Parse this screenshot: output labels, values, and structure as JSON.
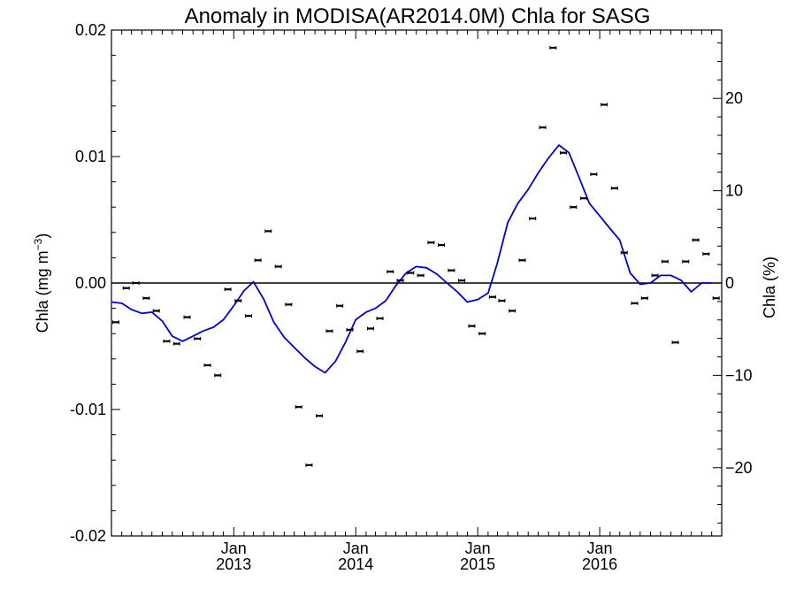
{
  "chart_data": {
    "type": "scatter",
    "title": "Anomaly in MODISA(AR2014.0M) Chla for SASG",
    "ylabel_left": {
      "base": "Chla (mg m",
      "sup": "−3",
      "close": ")"
    },
    "ylabel_right": "Chla (%)",
    "ylim_left": [
      -0.02,
      0.02
    ],
    "ylim_right": [
      -27.4,
      27.4
    ],
    "xlim": [
      "2012-01-01",
      "2016-12-31"
    ],
    "left_ticks": [
      {
        "value": 0.02,
        "label": "0.02"
      },
      {
        "value": 0.01,
        "label": "0.01"
      },
      {
        "value": 0.0,
        "label": "0.00"
      },
      {
        "value": -0.01,
        "label": "-0.01"
      },
      {
        "value": -0.02,
        "label": "-0.02"
      }
    ],
    "right_ticks": [
      {
        "value": 20,
        "label": "20"
      },
      {
        "value": 10,
        "label": "10"
      },
      {
        "value": 0,
        "label": "0"
      },
      {
        "value": -10,
        "label": "−10"
      },
      {
        "value": -20,
        "label": "−20"
      }
    ],
    "x_ticks": [
      {
        "date": "2013-01-01",
        "month": "Jan",
        "year": "2013"
      },
      {
        "date": "2014-01-01",
        "month": "Jan",
        "year": "2014"
      },
      {
        "date": "2015-01-01",
        "month": "Jan",
        "year": "2015"
      },
      {
        "date": "2016-01-01",
        "month": "Jan",
        "year": "2016"
      }
    ],
    "zero_line": true,
    "colors": {
      "points": "#000000",
      "line": "#0000cc",
      "zero": "#000000"
    },
    "series": [
      {
        "type": "scatter",
        "x": [
          "2012-01-01",
          "2012-02-01",
          "2012-03-01",
          "2012-04-01",
          "2012-05-01",
          "2012-06-01",
          "2012-07-01",
          "2012-08-01",
          "2012-09-01",
          "2012-10-01",
          "2012-11-01",
          "2012-12-01",
          "2013-01-01",
          "2013-02-01",
          "2013-03-01",
          "2013-04-01",
          "2013-05-01",
          "2013-06-01",
          "2013-07-01",
          "2013-08-01",
          "2013-09-01",
          "2013-10-01",
          "2013-11-01",
          "2013-12-01",
          "2014-01-01",
          "2014-02-01",
          "2014-03-01",
          "2014-04-01",
          "2014-05-01",
          "2014-06-01",
          "2014-07-01",
          "2014-08-01",
          "2014-09-01",
          "2014-10-01",
          "2014-11-01",
          "2014-12-01",
          "2015-01-01",
          "2015-02-01",
          "2015-03-01",
          "2015-04-01",
          "2015-05-01",
          "2015-06-01",
          "2015-07-01",
          "2015-08-01",
          "2015-09-01",
          "2015-10-01",
          "2015-11-01",
          "2015-12-01",
          "2016-01-01",
          "2016-02-01",
          "2016-03-01",
          "2016-04-01",
          "2016-05-01",
          "2016-06-01",
          "2016-07-01",
          "2016-08-01",
          "2016-09-01",
          "2016-10-01",
          "2016-11-01",
          "2016-12-01"
        ],
        "y": [
          -0.0031,
          -0.0004,
          0.0,
          -0.0012,
          -0.0022,
          -0.0046,
          -0.0048,
          -0.0027,
          -0.0044,
          -0.0065,
          -0.0073,
          -0.0005,
          -0.0014,
          -0.0026,
          0.0018,
          0.0041,
          0.0013,
          -0.0017,
          -0.0098,
          -0.0144,
          -0.0105,
          -0.0038,
          -0.0018,
          -0.0037,
          -0.0054,
          -0.0036,
          -0.0028,
          0.0009,
          0.0002,
          0.0008,
          0.0006,
          0.0032,
          0.003,
          0.001,
          0.0002,
          -0.0034,
          -0.004,
          -0.0011,
          -0.0014,
          -0.0022,
          0.0018,
          0.0051,
          0.0123,
          0.0186,
          0.0103,
          0.006,
          0.0067,
          0.0086,
          0.0141,
          0.0075,
          0.0024,
          -0.0016,
          -0.0012,
          0.0006,
          0.0017,
          -0.0047,
          0.0017,
          0.0034,
          0.0023,
          -0.0012
        ]
      },
      {
        "type": "line",
        "x": [
          "2012-01-01",
          "2012-02-01",
          "2012-03-01",
          "2012-04-01",
          "2012-05-01",
          "2012-06-01",
          "2012-07-01",
          "2012-08-01",
          "2012-09-01",
          "2012-10-01",
          "2012-11-01",
          "2012-12-01",
          "2013-01-01",
          "2013-02-01",
          "2013-03-01",
          "2013-04-01",
          "2013-05-01",
          "2013-06-01",
          "2013-07-01",
          "2013-08-01",
          "2013-09-01",
          "2013-10-01",
          "2013-11-01",
          "2013-12-01",
          "2014-01-01",
          "2014-02-01",
          "2014-03-01",
          "2014-04-01",
          "2014-05-01",
          "2014-06-01",
          "2014-07-01",
          "2014-08-01",
          "2014-09-01",
          "2014-10-01",
          "2014-11-01",
          "2014-12-01",
          "2015-01-01",
          "2015-02-01",
          "2015-03-01",
          "2015-04-01",
          "2015-05-01",
          "2015-06-01",
          "2015-07-01",
          "2015-08-01",
          "2015-09-01",
          "2015-10-01",
          "2015-11-01",
          "2015-12-01",
          "2016-01-01",
          "2016-02-01",
          "2016-03-01",
          "2016-04-01",
          "2016-05-01",
          "2016-06-01",
          "2016-07-01",
          "2016-08-01",
          "2016-09-01",
          "2016-10-01",
          "2016-11-01",
          "2016-12-01"
        ],
        "y": [
          -0.0015,
          -0.0016,
          -0.0021,
          -0.0024,
          -0.0023,
          -0.003,
          -0.0042,
          -0.0046,
          -0.0042,
          -0.0038,
          -0.0035,
          -0.0029,
          -0.0018,
          -0.0006,
          0.0001,
          -0.0013,
          -0.0031,
          -0.0043,
          -0.0051,
          -0.0059,
          -0.0066,
          -0.0071,
          -0.0062,
          -0.0047,
          -0.0029,
          -0.0023,
          -0.002,
          -0.0014,
          -0.0002,
          0.0008,
          0.0013,
          0.0012,
          0.0007,
          0.0,
          -0.0007,
          -0.0015,
          -0.0013,
          -0.0008,
          0.0016,
          0.0048,
          0.0063,
          0.0074,
          0.0087,
          0.0099,
          0.0109,
          0.0103,
          0.0083,
          0.0063,
          0.0053,
          0.0043,
          0.0034,
          0.0008,
          -0.0001,
          0.0,
          0.0006,
          0.0006,
          0.0002,
          -0.0007,
          0.0,
          0.0
        ]
      }
    ]
  }
}
